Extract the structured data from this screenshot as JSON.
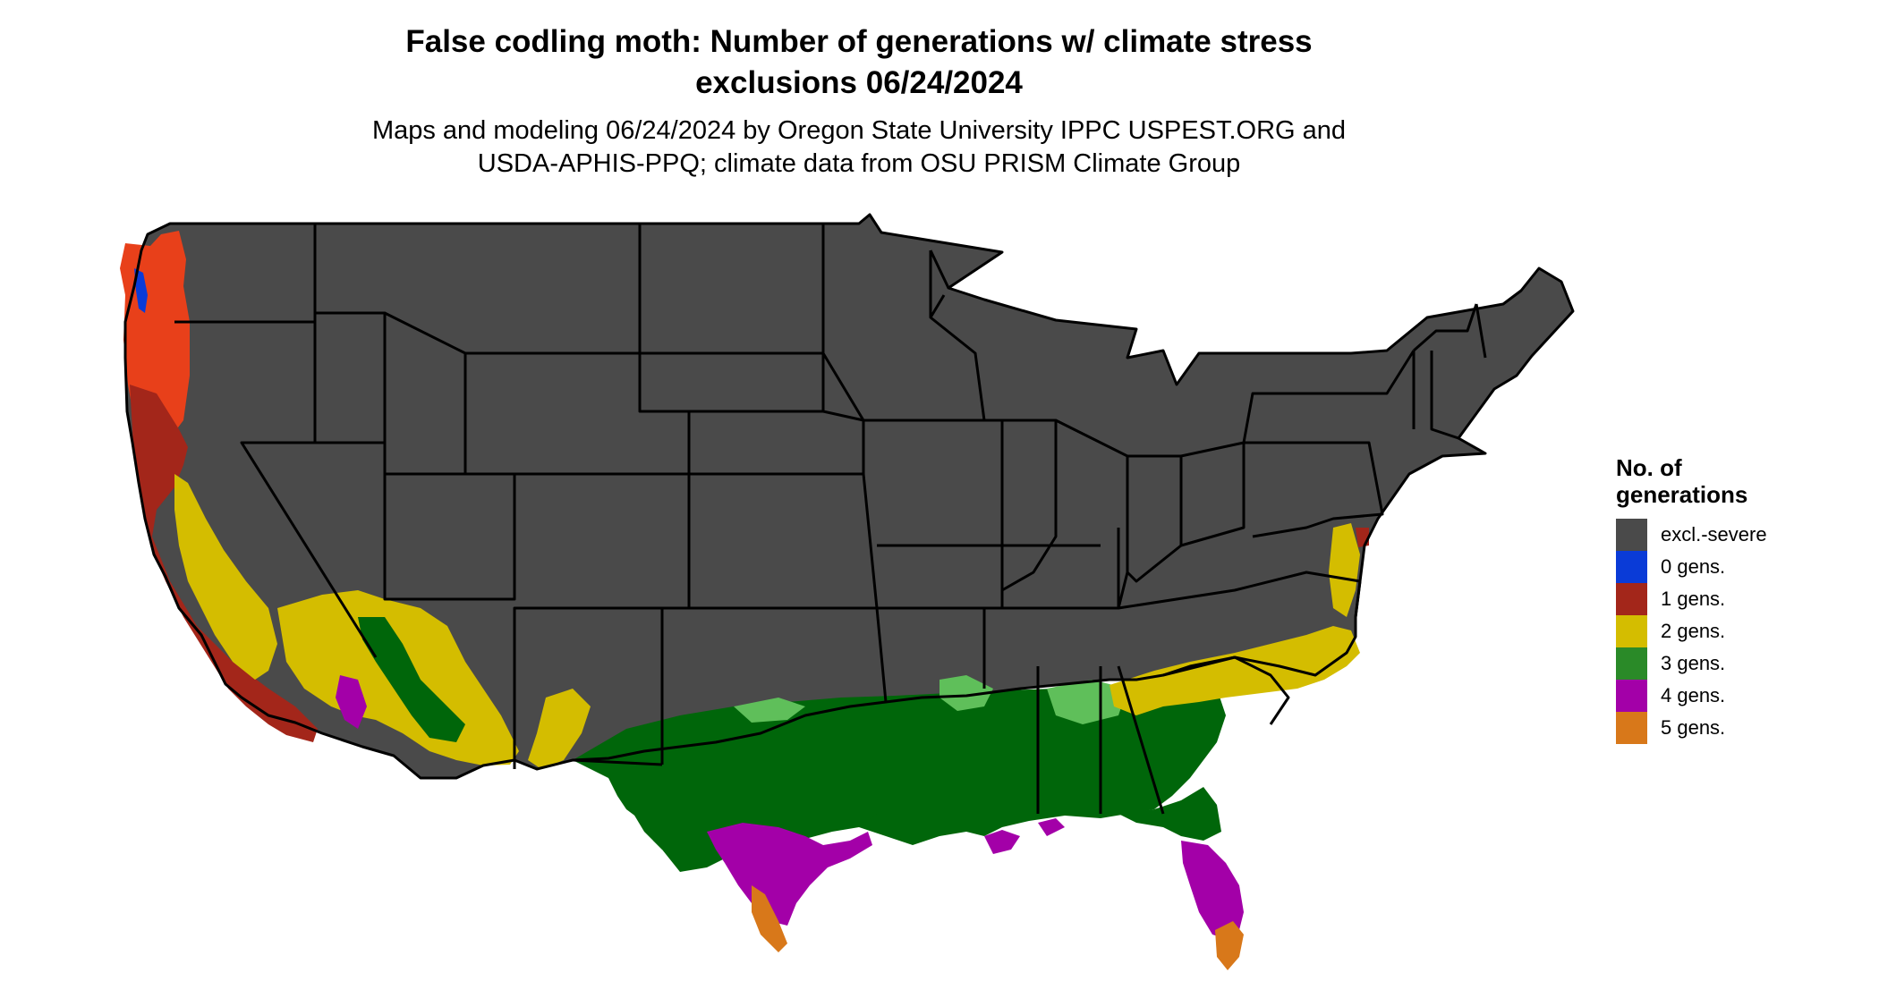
{
  "title_line1": "False codling moth: Number of generations w/ climate stress",
  "title_line2": "exclusions 06/24/2024",
  "subtitle_line1": "Maps and modeling 06/24/2024 by Oregon State University IPPC USPEST.ORG and",
  "subtitle_line2": "USDA-APHIS-PPQ; climate data from OSU PRISM Climate Group",
  "legend": {
    "title_line1": "No. of",
    "title_line2": "generations",
    "items": [
      {
        "label": "excl.-severe",
        "color": "#4a4a4a"
      },
      {
        "label": "0 gens.",
        "color": "#0a3bd7"
      },
      {
        "label": "1 gens.",
        "color": "#a3261a"
      },
      {
        "label": "2 gens.",
        "color": "#d4bd00"
      },
      {
        "label": "3 gens.",
        "color": "#2a8a28"
      },
      {
        "label": "4 gens.",
        "color": "#a300a8"
      },
      {
        "label": "5 gens.",
        "color": "#d8781a"
      }
    ]
  },
  "map_colors": {
    "excluded": "#4a4a4a",
    "zero": "#0a3bd7",
    "one": "#a3261a",
    "one_bright": "#e8401a",
    "two": "#d4bd00",
    "three": "#00660a",
    "three_light": "#5fbf5a",
    "four": "#a300a8",
    "four_bright": "#d400d4",
    "five": "#d8781a",
    "border": "#000000"
  }
}
